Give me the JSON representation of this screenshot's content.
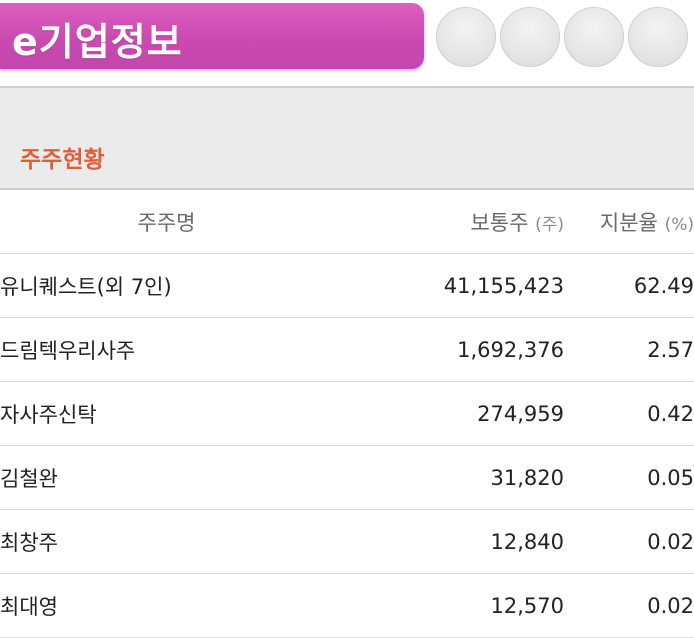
{
  "header": {
    "title": "e기업정보"
  },
  "section": {
    "label": "주주현황"
  },
  "table": {
    "columns": {
      "name": "주주명",
      "shares": "보통주",
      "shares_unit": "(주)",
      "ratio": "지분율",
      "ratio_unit": "(%)"
    },
    "rows": [
      {
        "name": "유니퀘스트(외 7인)",
        "shares": "41,155,423",
        "ratio": "62.49"
      },
      {
        "name": "드림텍우리사주",
        "shares": "1,692,376",
        "ratio": "2.57"
      },
      {
        "name": "자사주신탁",
        "shares": "274,959",
        "ratio": "0.42"
      },
      {
        "name": "김철완",
        "shares": "31,820",
        "ratio": "0.05"
      },
      {
        "name": "최창주",
        "shares": "12,840",
        "ratio": "0.02"
      },
      {
        "name": "최대영",
        "shares": "12,570",
        "ratio": "0.02"
      }
    ]
  },
  "colors": {
    "title_tab": "#c94ab2",
    "section_label": "#e05f3b",
    "section_bg": "#ebebeb"
  }
}
